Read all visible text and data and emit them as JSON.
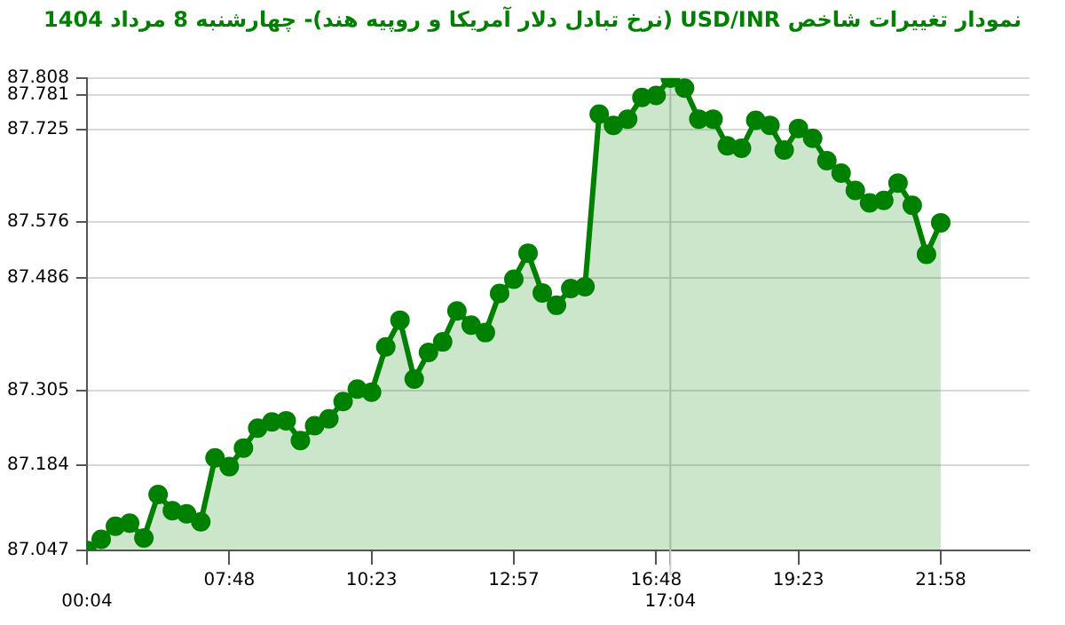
{
  "chart_data": {
    "type": "area",
    "title": "نمودار تغییرات شاخص USD/INR (نرخ تبادل دلار آمریکا و روپیه هند)- چهارشنبه  8 مرداد 1404",
    "categories": [
      "00:04",
      null,
      null,
      null,
      null,
      null,
      null,
      null,
      null,
      null,
      "07:48",
      null,
      null,
      null,
      null,
      null,
      null,
      null,
      null,
      null,
      "10:23",
      null,
      null,
      null,
      null,
      null,
      null,
      null,
      null,
      null,
      "12:57",
      null,
      null,
      null,
      null,
      null,
      null,
      null,
      null,
      null,
      "16:48",
      "17:04",
      null,
      null,
      null,
      null,
      null,
      null,
      null,
      null,
      "19:23",
      null,
      null,
      null,
      null,
      null,
      null,
      null,
      null,
      null,
      "21:58"
    ],
    "series": [
      {
        "color": "#008000",
        "values": [
          87.047,
          87.065,
          87.086,
          87.091,
          87.067,
          87.137,
          87.111,
          87.106,
          87.093,
          87.196,
          87.182,
          87.212,
          87.244,
          87.254,
          87.256,
          87.224,
          87.248,
          87.259,
          87.287,
          87.307,
          87.302,
          87.375,
          87.418,
          87.323,
          87.366,
          87.383,
          87.433,
          87.41,
          87.398,
          87.461,
          87.484,
          87.526,
          87.462,
          87.442,
          87.469,
          87.472,
          87.75,
          87.732,
          87.742,
          87.777,
          87.78,
          87.808,
          87.792,
          87.742,
          87.742,
          87.699,
          87.695,
          87.74,
          87.732,
          87.692,
          87.727,
          87.711,
          87.675,
          87.655,
          87.627,
          87.607,
          87.611,
          87.639,
          87.603,
          87.524,
          87.575
        ]
      }
    ],
    "ylim": [
      87.047,
      87.808
    ],
    "yticks": [
      87.047,
      87.184,
      87.305,
      87.486,
      87.576,
      87.725,
      87.781,
      87.808
    ],
    "grid": "y",
    "marker": "circle",
    "legend": false,
    "ref_lines": [
      {
        "axis": "x",
        "value": "17:04",
        "color": "#cccccc"
      }
    ]
  }
}
